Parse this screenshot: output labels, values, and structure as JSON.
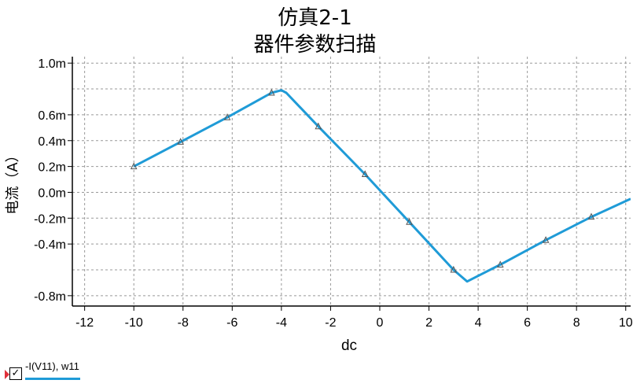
{
  "chart_data": {
    "type": "line",
    "title": "仿真2-1",
    "subtitle": "器件参数扫描",
    "xlabel": "dc",
    "ylabel": "电流（A）",
    "xlim": [
      -12.5,
      10.2
    ],
    "ylim": [
      -0.00088,
      0.00105
    ],
    "x_ticks": [
      -12,
      -10,
      -8,
      -6,
      -4,
      -2,
      0,
      2,
      4,
      6,
      8,
      10
    ],
    "x_tick_labels": [
      "-12",
      "-10",
      "-8",
      "-6",
      "-4",
      "-2",
      "0",
      "2",
      "4",
      "6",
      "8",
      "10"
    ],
    "y_ticks": [
      0.001,
      0.0006,
      0.0004,
      0.0002,
      0.0,
      -0.0002,
      -0.0004,
      -0.0008
    ],
    "y_tick_labels": [
      "1.0m",
      "0.6m",
      "0.4m",
      "0.2m",
      "0.0m",
      "-0.2m",
      "-0.4m",
      "-0.8m"
    ],
    "y_grid_extra": [
      0.0008,
      -0.0006
    ],
    "grid": true,
    "legend_position": "bottom-left",
    "series": [
      {
        "name": "-I(V11), w11",
        "color": "#1f9bd7",
        "x": [
          -10,
          -8.1,
          -6.2,
          -4.4,
          -4.0,
          -3.8,
          -2.5,
          -0.6,
          1.2,
          3.0,
          3.55,
          4.9,
          6.75,
          8.6,
          10.2
        ],
        "y": [
          0.0002,
          0.00039,
          0.00058,
          0.00077,
          0.00079,
          0.00077,
          0.00051,
          0.00014,
          -0.00023,
          -0.0006,
          -0.00069,
          -0.00056,
          -0.00037,
          -0.00019,
          -5e-05
        ]
      }
    ],
    "markers": {
      "x": [
        -10,
        -8.1,
        -6.2,
        -4.4,
        -2.5,
        -0.6,
        1.2,
        3.0,
        4.9,
        6.75,
        8.6
      ],
      "y": [
        0.0002,
        0.00039,
        0.00058,
        0.00077,
        0.00051,
        0.00014,
        -0.00023,
        -0.0006,
        -0.00056,
        -0.00037,
        -0.00019
      ]
    }
  },
  "legend": {
    "label": "-I(V11), w11",
    "check": "✓"
  }
}
